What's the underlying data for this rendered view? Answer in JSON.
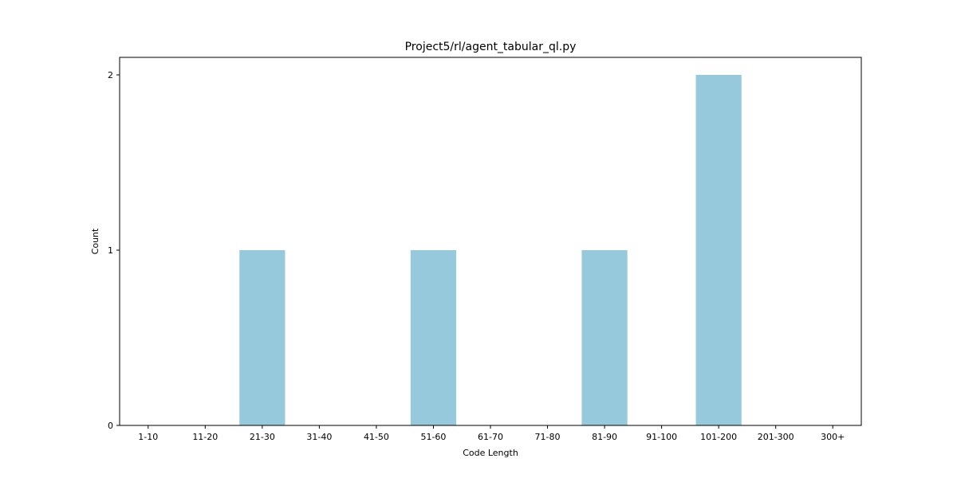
{
  "chart_data": {
    "type": "bar",
    "title": "Project5/rl/agent_tabular_ql.py",
    "xlabel": "Code Length",
    "ylabel": "Count",
    "categories": [
      "1-10",
      "11-20",
      "21-30",
      "31-40",
      "41-50",
      "51-60",
      "61-70",
      "71-80",
      "81-90",
      "91-100",
      "101-200",
      "201-300",
      "300+"
    ],
    "values": [
      0,
      0,
      1,
      0,
      0,
      1,
      0,
      0,
      1,
      0,
      2,
      0,
      0
    ],
    "ylim": [
      0,
      2.1
    ],
    "yticks": [
      0,
      1,
      2
    ],
    "grid": false,
    "bar_color": "#96c9dc"
  }
}
